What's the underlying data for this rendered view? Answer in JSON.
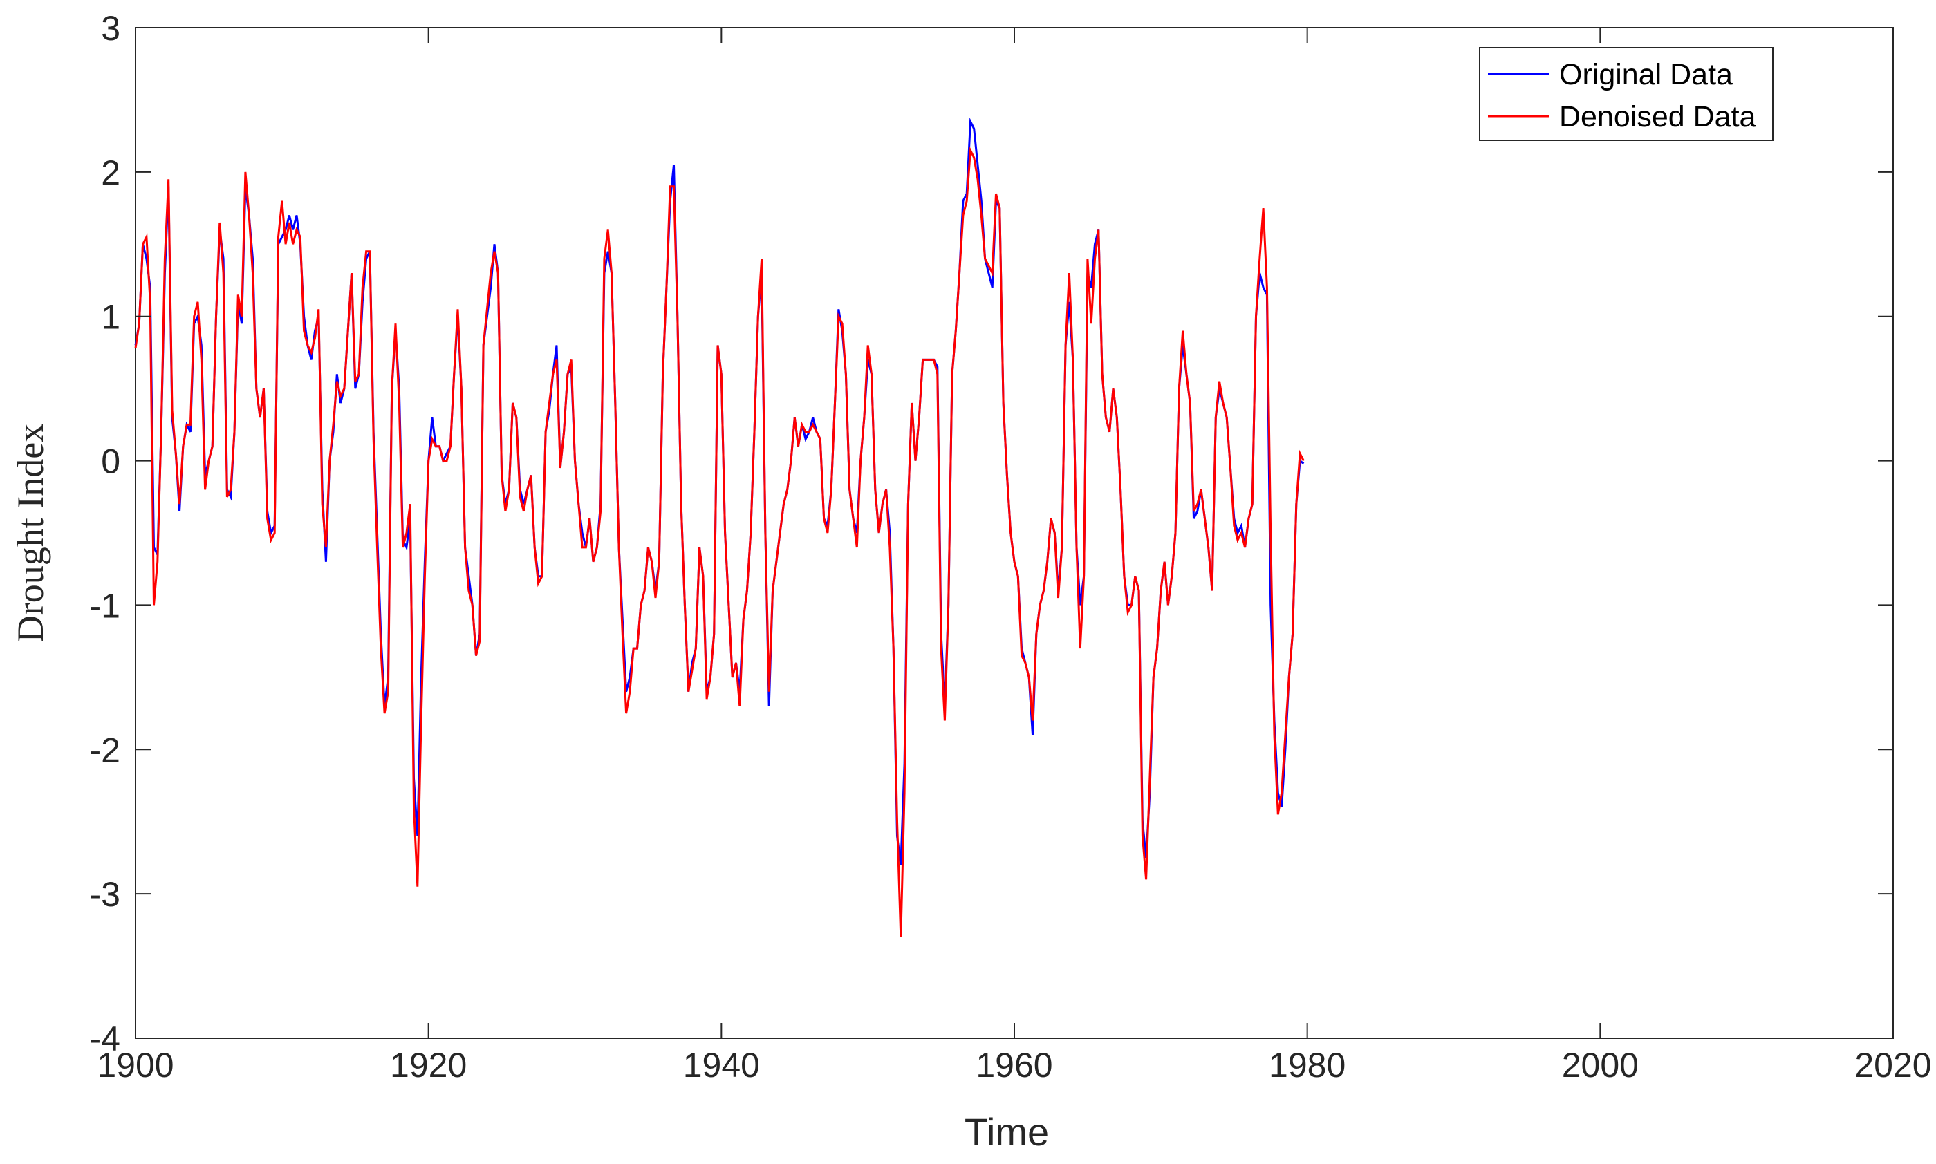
{
  "chart_data": {
    "type": "line",
    "title": "",
    "xlabel": "Time",
    "ylabel": "Drought Index",
    "xlim": [
      1900,
      2020
    ],
    "ylim": [
      -4,
      3
    ],
    "xticks": [
      1900,
      1920,
      1940,
      1960,
      1980,
      2000,
      2020
    ],
    "yticks": [
      3,
      2,
      1,
      0,
      -1,
      -2,
      -3,
      -4
    ],
    "grid": false,
    "legend_position": "top-right",
    "colors": {
      "original": "#0000ff",
      "denoised": "#ff0000",
      "axis": "#262626"
    },
    "x_start": 1900,
    "x_step": 0.25,
    "series": [
      {
        "name": "Original Data",
        "color": "#0000ff",
        "values": [
          0.8,
          0.95,
          1.5,
          1.4,
          1.2,
          -0.6,
          -0.65,
          0.2,
          1.3,
          1.9,
          0.3,
          0.05,
          -0.35,
          0.1,
          0.25,
          0.2,
          0.95,
          1.0,
          0.8,
          -0.1,
          0.0,
          0.1,
          1.0,
          1.6,
          1.4,
          -0.2,
          -0.25,
          0.2,
          1.1,
          0.95,
          1.9,
          1.7,
          1.4,
          0.5,
          0.3,
          0.5,
          -0.35,
          -0.5,
          -0.45,
          1.5,
          1.55,
          1.6,
          1.7,
          1.6,
          1.7,
          1.5,
          1.0,
          0.8,
          0.7,
          0.9,
          1.0,
          -0.2,
          -0.7,
          0.0,
          0.2,
          0.6,
          0.4,
          0.5,
          0.9,
          1.3,
          0.5,
          0.6,
          1.1,
          1.4,
          1.45,
          0.2,
          -0.5,
          -1.2,
          -1.7,
          -1.5,
          0.5,
          0.9,
          0.5,
          -0.55,
          -0.6,
          -0.4,
          -2.2,
          -2.6,
          -1.5,
          -0.7,
          0.0,
          0.3,
          0.1,
          0.1,
          0.0,
          0.05,
          0.1,
          0.6,
          1.0,
          0.5,
          -0.6,
          -0.8,
          -1.0,
          -1.35,
          -1.2,
          0.8,
          1.0,
          1.2,
          1.5,
          1.3,
          -0.1,
          -0.3,
          -0.2,
          0.4,
          0.3,
          -0.2,
          -0.3,
          -0.2,
          -0.1,
          -0.6,
          -0.8,
          -0.8,
          0.2,
          0.35,
          0.6,
          0.8,
          -0.05,
          0.2,
          0.6,
          0.65,
          0.0,
          -0.3,
          -0.5,
          -0.6,
          -0.4,
          -0.7,
          -0.6,
          -0.3,
          1.3,
          1.45,
          1.3,
          0.4,
          -0.6,
          -1.1,
          -1.6,
          -1.5,
          -1.3,
          -1.3,
          -1.0,
          -0.9,
          -0.6,
          -0.7,
          -0.9,
          -0.7,
          0.6,
          1.2,
          1.8,
          2.05,
          1.0,
          -0.3,
          -1.0,
          -1.6,
          -1.4,
          -1.3,
          -0.6,
          -0.8,
          -1.6,
          -1.5,
          -1.2,
          0.8,
          0.6,
          -0.5,
          -1.0,
          -1.5,
          -1.4,
          -1.6,
          -1.1,
          -0.9,
          -0.5,
          0.2,
          1.0,
          1.3,
          -0.5,
          -1.7,
          -0.9,
          -0.7,
          -0.5,
          -0.3,
          -0.2,
          0.0,
          0.3,
          0.1,
          0.25,
          0.15,
          0.2,
          0.3,
          0.2,
          0.15,
          -0.4,
          -0.45,
          -0.2,
          0.4,
          1.05,
          0.9,
          0.6,
          -0.2,
          -0.4,
          -0.5,
          0.0,
          0.3,
          0.7,
          0.6,
          -0.2,
          -0.5,
          -0.3,
          -0.2,
          -0.5,
          -1.3,
          -2.6,
          -2.8,
          -2.1,
          -0.3,
          0.4,
          0.0,
          0.3,
          0.7,
          0.7,
          0.7,
          0.7,
          0.65,
          -1.2,
          -1.7,
          -1.0,
          0.6,
          0.9,
          1.3,
          1.8,
          1.85,
          2.35,
          2.3,
          2.05,
          1.8,
          1.4,
          1.3,
          1.2,
          1.8,
          1.75,
          0.4,
          -0.1,
          -0.5,
          -0.7,
          -0.8,
          -1.3,
          -1.4,
          -1.5,
          -1.9,
          -1.2,
          -1.0,
          -0.9,
          -0.7,
          -0.4,
          -0.5,
          -0.9,
          -0.6,
          0.8,
          1.1,
          0.7,
          -0.6,
          -1.0,
          -0.8,
          1.3,
          1.2,
          1.5,
          1.6,
          0.6,
          0.3,
          0.2,
          0.5,
          0.3,
          -0.2,
          -0.8,
          -1.0,
          -1.0,
          -0.8,
          -0.9,
          -2.5,
          -2.75,
          -2.3,
          -1.5,
          -1.3,
          -0.9,
          -0.7,
          -1.0,
          -0.8,
          -0.5,
          0.5,
          0.8,
          0.6,
          0.4,
          -0.4,
          -0.35,
          -0.2,
          -0.4,
          -0.6,
          -0.9,
          0.3,
          0.5,
          0.4,
          0.3,
          -0.05,
          -0.4,
          -0.5,
          -0.45,
          -0.6,
          -0.4,
          -0.3,
          1.0,
          1.3,
          1.2,
          1.15,
          -1.0,
          -1.8,
          -2.3,
          -2.4,
          -2.0,
          -1.5,
          -1.2,
          -0.3,
          0.0,
          -0.02
        ]
      },
      {
        "name": "Denoised Data",
        "color": "#ff0000",
        "values": [
          0.78,
          0.95,
          1.5,
          1.55,
          1.1,
          -1.0,
          -0.7,
          0.2,
          1.4,
          1.95,
          0.35,
          0.05,
          -0.3,
          0.1,
          0.25,
          0.25,
          1.0,
          1.1,
          0.7,
          -0.2,
          0.0,
          0.1,
          1.0,
          1.65,
          1.3,
          -0.25,
          -0.2,
          0.2,
          1.15,
          1.0,
          2.0,
          1.7,
          1.3,
          0.5,
          0.3,
          0.5,
          -0.4,
          -0.55,
          -0.5,
          1.55,
          1.8,
          1.5,
          1.65,
          1.5,
          1.6,
          1.55,
          0.9,
          0.8,
          0.75,
          0.85,
          1.05,
          -0.3,
          -0.6,
          0.0,
          0.25,
          0.55,
          0.45,
          0.5,
          0.9,
          1.3,
          0.55,
          0.6,
          1.2,
          1.45,
          1.45,
          0.15,
          -0.6,
          -1.3,
          -1.75,
          -1.6,
          0.5,
          0.95,
          0.4,
          -0.6,
          -0.5,
          -0.3,
          -2.4,
          -2.95,
          -1.8,
          -0.8,
          0.0,
          0.15,
          0.1,
          0.1,
          0.0,
          0.0,
          0.1,
          0.6,
          1.05,
          0.5,
          -0.6,
          -0.9,
          -1.0,
          -1.35,
          -1.25,
          0.8,
          1.05,
          1.3,
          1.45,
          1.3,
          -0.1,
          -0.35,
          -0.2,
          0.4,
          0.3,
          -0.25,
          -0.35,
          -0.2,
          -0.1,
          -0.6,
          -0.85,
          -0.8,
          0.2,
          0.4,
          0.6,
          0.7,
          -0.05,
          0.2,
          0.6,
          0.7,
          0.0,
          -0.3,
          -0.6,
          -0.6,
          -0.4,
          -0.7,
          -0.6,
          -0.35,
          1.4,
          1.6,
          1.3,
          0.4,
          -0.6,
          -1.2,
          -1.75,
          -1.6,
          -1.3,
          -1.3,
          -1.0,
          -0.9,
          -0.6,
          -0.7,
          -0.95,
          -0.7,
          0.6,
          1.2,
          1.9,
          1.9,
          1.0,
          -0.3,
          -1.0,
          -1.6,
          -1.45,
          -1.3,
          -0.6,
          -0.8,
          -1.65,
          -1.5,
          -1.2,
          0.8,
          0.6,
          -0.5,
          -1.0,
          -1.5,
          -1.4,
          -1.7,
          -1.1,
          -0.9,
          -0.5,
          0.2,
          1.0,
          1.4,
          -0.5,
          -1.6,
          -0.9,
          -0.7,
          -0.5,
          -0.3,
          -0.2,
          0.0,
          0.3,
          0.1,
          0.25,
          0.2,
          0.2,
          0.25,
          0.2,
          0.15,
          -0.4,
          -0.5,
          -0.2,
          0.4,
          1.0,
          0.95,
          0.6,
          -0.2,
          -0.4,
          -0.6,
          0.0,
          0.3,
          0.8,
          0.6,
          -0.2,
          -0.5,
          -0.3,
          -0.2,
          -0.6,
          -1.3,
          -2.5,
          -3.3,
          -2.3,
          -0.3,
          0.4,
          0.0,
          0.3,
          0.7,
          0.7,
          0.7,
          0.7,
          0.6,
          -1.3,
          -1.8,
          -1.0,
          0.6,
          0.9,
          1.3,
          1.7,
          1.8,
          2.15,
          2.1,
          1.95,
          1.7,
          1.4,
          1.35,
          1.3,
          1.85,
          1.75,
          0.4,
          -0.1,
          -0.5,
          -0.7,
          -0.8,
          -1.35,
          -1.4,
          -1.5,
          -1.8,
          -1.2,
          -1.0,
          -0.9,
          -0.7,
          -0.4,
          -0.5,
          -0.95,
          -0.6,
          0.8,
          1.3,
          0.7,
          -0.6,
          -1.3,
          -0.8,
          1.4,
          0.95,
          1.4,
          1.6,
          0.6,
          0.3,
          0.2,
          0.5,
          0.3,
          -0.2,
          -0.8,
          -1.05,
          -1.0,
          -0.8,
          -0.9,
          -2.6,
          -2.9,
          -2.2,
          -1.5,
          -1.3,
          -0.9,
          -0.7,
          -1.0,
          -0.8,
          -0.5,
          0.5,
          0.9,
          0.6,
          0.4,
          -0.35,
          -0.3,
          -0.2,
          -0.4,
          -0.6,
          -0.9,
          0.3,
          0.55,
          0.4,
          0.3,
          -0.05,
          -0.45,
          -0.55,
          -0.5,
          -0.6,
          -0.4,
          -0.3,
          1.0,
          1.4,
          1.75,
          1.2,
          -0.5,
          -1.9,
          -2.45,
          -2.3,
          -1.9,
          -1.5,
          -1.2,
          -0.3,
          0.05,
          0.0
        ]
      }
    ]
  }
}
